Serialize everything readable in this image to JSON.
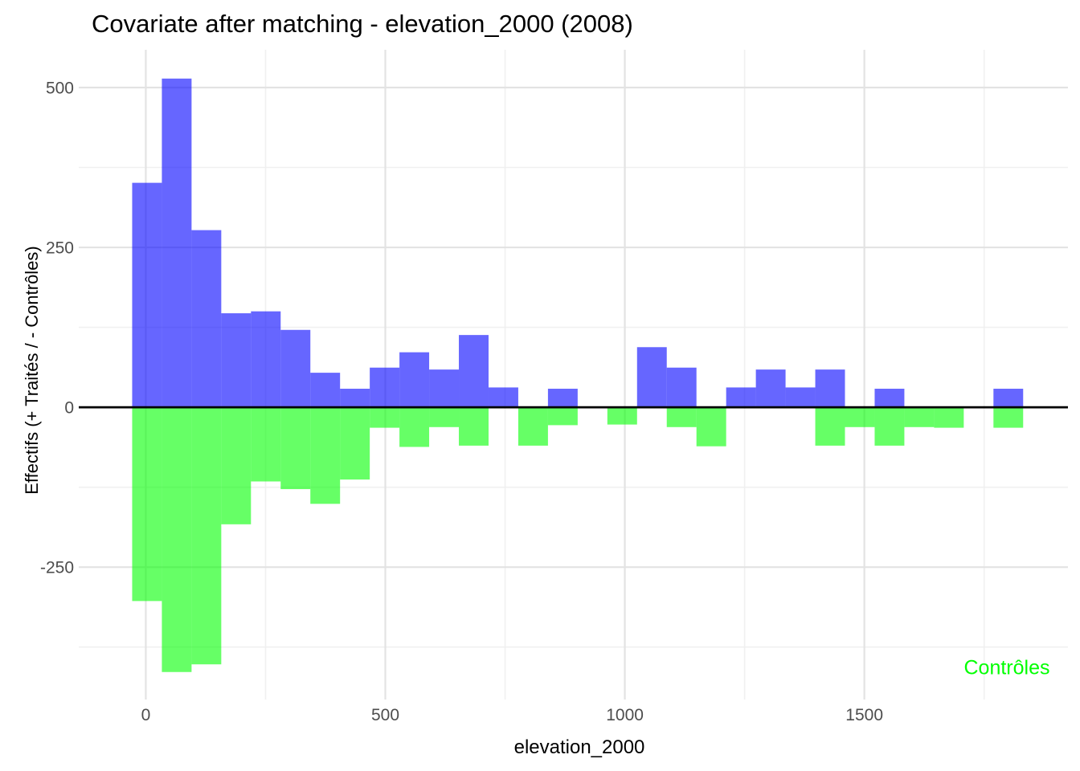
{
  "chart_data": {
    "type": "bar",
    "subtype": "mirrored-histogram",
    "title": "Covariate after matching - elevation_2000 (2008)",
    "xlabel": "elevation_2000",
    "ylabel": "Effectifs (+ Traités / - Contrôles)",
    "annotation": {
      "text": "Contrôles",
      "color": "#00FF00",
      "position": "bottom-right"
    },
    "bins": {
      "start": -28.5,
      "width": 62,
      "count": 30
    },
    "series": [
      {
        "name": "Traités",
        "sign": "positive",
        "fill": "rgba(0,0,255,0.6)",
        "values": [
          351,
          514,
          277,
          147,
          150,
          121,
          54,
          29,
          62,
          86,
          59,
          113,
          31,
          0,
          29,
          0,
          0,
          94,
          62,
          0,
          31,
          59,
          31,
          59,
          0,
          29,
          0,
          0,
          0,
          29
        ]
      },
      {
        "name": "Contrôles",
        "sign": "negative",
        "fill": "rgba(0,255,0,0.6)",
        "values": [
          -303,
          -414,
          -402,
          -183,
          -116,
          -128,
          -151,
          -113,
          -32,
          -62,
          -31,
          -60,
          0,
          -60,
          -28,
          0,
          -27,
          0,
          -31,
          -61,
          0,
          0,
          0,
          -60,
          -31,
          -60,
          -31,
          -32,
          0,
          -32
        ]
      }
    ],
    "axes": {
      "x": {
        "ticks": [
          0,
          500,
          1000,
          1500
        ],
        "minor": [
          250,
          750,
          1250,
          1750
        ],
        "lim": [
          -140,
          1925
        ]
      },
      "y": {
        "ticks": [
          500,
          250,
          0,
          -250
        ],
        "minor": [
          375,
          125,
          -125,
          -375
        ],
        "lim": [
          -457,
          559
        ]
      }
    },
    "zero_line": true,
    "style": {
      "background": "#FFFFFF",
      "grid_major": "#E3E3E3",
      "grid_minor": "#F0F0F0",
      "tick_text": "#4D4D4D",
      "text": "#000000",
      "zero_line_color": "#000000"
    }
  }
}
